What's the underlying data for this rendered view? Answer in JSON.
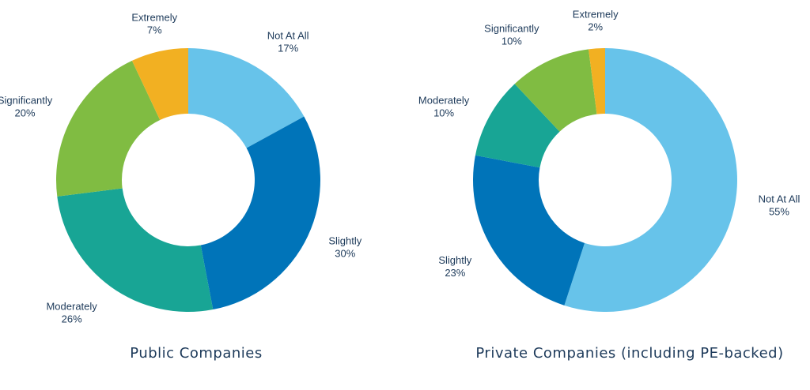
{
  "chart_data": [
    {
      "type": "pie",
      "title": "Public Companies",
      "slices": [
        {
          "label": "Not At All",
          "value": 17,
          "value_label": "17%",
          "color": "#67c3ea"
        },
        {
          "label": "Slightly",
          "value": 30,
          "value_label": "30%",
          "color": "#0074b9"
        },
        {
          "label": "Moderately",
          "value": 26,
          "value_label": "26%",
          "color": "#18a595"
        },
        {
          "label": "Significantly",
          "value": 20,
          "value_label": "20%",
          "color": "#80bc42"
        },
        {
          "label": "Extremely",
          "value": 7,
          "value_label": "7%",
          "color": "#f2b022"
        }
      ]
    },
    {
      "type": "pie",
      "title": "Private Companies (including PE-backed)",
      "slices": [
        {
          "label": "Not At All",
          "value": 55,
          "value_label": "55%",
          "color": "#67c3ea"
        },
        {
          "label": "Slightly",
          "value": 23,
          "value_label": "23%",
          "color": "#0074b9"
        },
        {
          "label": "Moderately",
          "value": 10,
          "value_label": "10%",
          "color": "#18a595"
        },
        {
          "label": "Significantly",
          "value": 10,
          "value_label": "10%",
          "color": "#80bc42"
        },
        {
          "label": "Extremely",
          "value": 2,
          "value_label": "2%",
          "color": "#f2b022"
        }
      ]
    }
  ]
}
